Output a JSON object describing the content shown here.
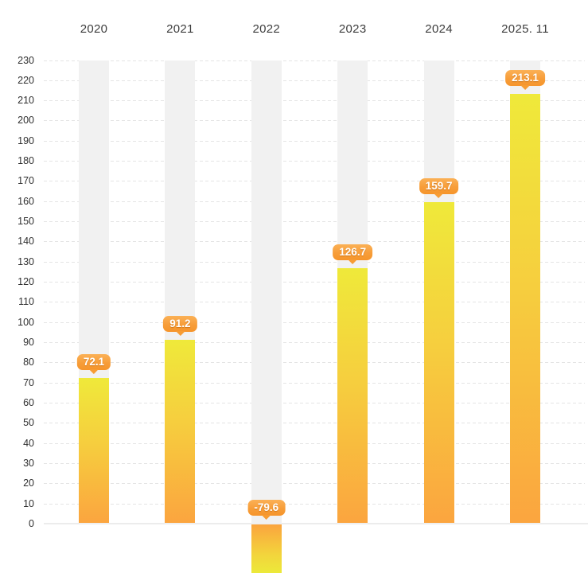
{
  "chart_data": {
    "type": "bar",
    "title": "",
    "xlabel": "",
    "ylabel": "",
    "categories": [
      "2020",
      "2021",
      "2022",
      "2023",
      "2024",
      "2025. 11"
    ],
    "values": [
      72.1,
      91.2,
      -79.6,
      126.7,
      159.7,
      213.1
    ],
    "labels": [
      "72.1",
      "91.2",
      "-79.6",
      "126.7",
      "159.7",
      "213.1"
    ],
    "ylim": [
      0,
      230
    ],
    "ytick_step": 10,
    "yticks": [
      0,
      10,
      20,
      30,
      40,
      50,
      60,
      70,
      80,
      90,
      100,
      110,
      120,
      130,
      140,
      150,
      160,
      170,
      180,
      190,
      200,
      210,
      220,
      230
    ],
    "grid": "horizontal-dashed",
    "legend": "none",
    "colors": {
      "bar_gradient_top": "#EFE93A",
      "bar_gradient_bottom": "#FBA53F",
      "badge_gradient_top": "#FBB156",
      "badge_gradient_bottom": "#F6952B",
      "badge_text": "#FFFFFF",
      "column_background": "#F1F1F1",
      "gridline": "#E4E4E4",
      "zero_line": "#ECECEC",
      "axis_text": "#2F2F2F"
    }
  }
}
